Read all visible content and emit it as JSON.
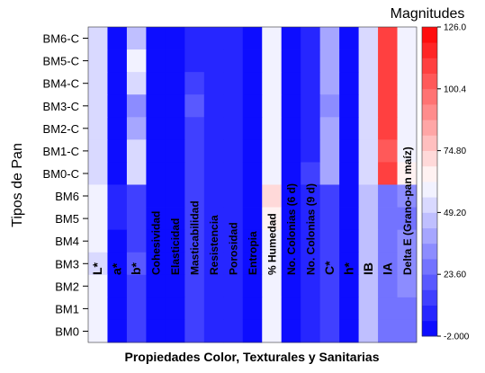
{
  "chart_data": {
    "type": "heatmap",
    "title": "",
    "xlabel": "Propiedades Color, Texturales y Sanitarias",
    "ylabel": "Tipos de Pan",
    "legend_title": "Magnitudes",
    "x": [
      "L*",
      "a*",
      "b*",
      "Cohesividad",
      "Elasticidad",
      "Masticabilidad",
      "Resistencia",
      "Porosidad",
      "Entropia",
      "% Humedad",
      "No. Colonias (6 d)",
      "No. Colonias (9 d)",
      "C*",
      "h*",
      "IB",
      "IA",
      "Delta E (Grano-pan maíz)"
    ],
    "y": [
      "BM6-C",
      "BM5-C",
      "BM4-C",
      "BM3-C",
      "BM2-C",
      "BM1-C",
      "BM0-C",
      "BM6",
      "BM5",
      "BM4",
      "BM3",
      "BM2",
      "BM1",
      "BM0"
    ],
    "values": [
      [
        50,
        0,
        45,
        4,
        3,
        8,
        7,
        5,
        3,
        58,
        2,
        6,
        42,
        1,
        51,
        112,
        60
      ],
      [
        52,
        0,
        57,
        4,
        3,
        9,
        7,
        5,
        3,
        58,
        2,
        6,
        42,
        1,
        51,
        110,
        58
      ],
      [
        50,
        0,
        50,
        4,
        4,
        12,
        7,
        5,
        3,
        60,
        2,
        6,
        42,
        1,
        51,
        108,
        60
      ],
      [
        51,
        0,
        30,
        4,
        4,
        19,
        7,
        5,
        3,
        58,
        2,
        6,
        36,
        1,
        51,
        110,
        60
      ],
      [
        52,
        0,
        42,
        4,
        3,
        14,
        7,
        5,
        3,
        58,
        2,
        6,
        40,
        1,
        51,
        112,
        58
      ],
      [
        53,
        0,
        55,
        4,
        3,
        12,
        7,
        5,
        3,
        58,
        2,
        9,
        42,
        1,
        51,
        106,
        60
      ],
      [
        53,
        0,
        50,
        4,
        3,
        14,
        7,
        5,
        3,
        60,
        2,
        12,
        42,
        1,
        51,
        112,
        62
      ],
      [
        60,
        10,
        15,
        4,
        4,
        16,
        7,
        5,
        3,
        72,
        2,
        7,
        16,
        1,
        49,
        26,
        30
      ],
      [
        58,
        5,
        14,
        4,
        4,
        14,
        7,
        5,
        3,
        62,
        2,
        7,
        14,
        1,
        49,
        26,
        28
      ],
      [
        56,
        4,
        16,
        4,
        4,
        16,
        7,
        5,
        3,
        60,
        2,
        7,
        16,
        1,
        49,
        26,
        30
      ],
      [
        54,
        4,
        18,
        4,
        4,
        16,
        7,
        5,
        3,
        58,
        2,
        7,
        16,
        1,
        49,
        26,
        30
      ],
      [
        56,
        4,
        14,
        4,
        4,
        14,
        7,
        5,
        3,
        58,
        2,
        7,
        16,
        1,
        49,
        26,
        30
      ],
      [
        60,
        2,
        14,
        4,
        4,
        16,
        7,
        5,
        3,
        58,
        2,
        7,
        14,
        1,
        49,
        24,
        28
      ],
      [
        56,
        2,
        12,
        4,
        4,
        14,
        7,
        5,
        3,
        58,
        2,
        7,
        14,
        1,
        49,
        24,
        28
      ]
    ],
    "color_scale": {
      "min": -2.0,
      "max": 126.0,
      "ticks": [
        "126.0",
        "100.4",
        "74.80",
        "49.20",
        "23.60",
        "-2.000"
      ],
      "tick_values": [
        126.0,
        100.4,
        74.8,
        49.2,
        23.6,
        -2.0
      ],
      "colors": [
        "#0000ff",
        "#ffffff",
        "#ff0000"
      ],
      "levels": 20
    },
    "grid": false,
    "legend_position": "right"
  }
}
